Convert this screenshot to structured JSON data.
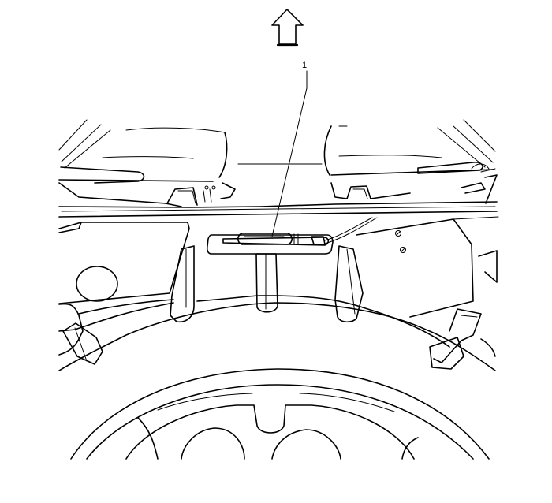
{
  "figure": {
    "callouts": [
      {
        "label": "1"
      }
    ],
    "orientation_arrow": "up-arrow-icon"
  }
}
